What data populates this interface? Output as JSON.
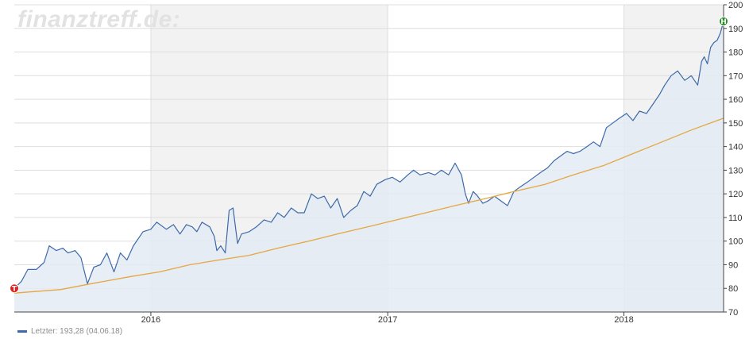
{
  "watermark": "finanztreff.de:",
  "legend": {
    "label": "Letzter: 193,28 (04.06.18)",
    "color": "#3e69a8"
  },
  "chart_data": {
    "type": "line",
    "ylim": [
      70,
      200
    ],
    "yticks": [
      70,
      80,
      90,
      100,
      110,
      120,
      130,
      140,
      150,
      160,
      170,
      180,
      190,
      200
    ],
    "xlim": [
      "2015-06-04",
      "2018-06-04"
    ],
    "xticks": [
      {
        "date": "2016-01-01",
        "label": "2016"
      },
      {
        "date": "2017-01-01",
        "label": "2017"
      },
      {
        "date": "2018-01-01",
        "label": "2018"
      }
    ],
    "shaded_years": [
      [
        "2016-01-01",
        "2017-01-01"
      ],
      [
        "2018-01-01",
        "2018-06-04"
      ]
    ],
    "grid": true,
    "series": [
      {
        "role": "price",
        "color": "#3e69a8",
        "fill": "#e3ebf5",
        "points": [
          [
            "2015-06-04",
            80
          ],
          [
            "2015-06-15",
            83
          ],
          [
            "2015-06-25",
            88
          ],
          [
            "2015-07-08",
            88
          ],
          [
            "2015-07-20",
            91
          ],
          [
            "2015-07-28",
            98
          ],
          [
            "2015-08-08",
            96
          ],
          [
            "2015-08-18",
            97
          ],
          [
            "2015-08-26",
            95
          ],
          [
            "2015-09-06",
            96
          ],
          [
            "2015-09-15",
            93
          ],
          [
            "2015-09-25",
            82
          ],
          [
            "2015-10-05",
            89
          ],
          [
            "2015-10-15",
            90
          ],
          [
            "2015-10-25",
            95
          ],
          [
            "2015-11-05",
            87
          ],
          [
            "2015-11-15",
            95
          ],
          [
            "2015-11-25",
            92
          ],
          [
            "2015-12-05",
            98
          ],
          [
            "2015-12-20",
            104
          ],
          [
            "2016-01-01",
            105
          ],
          [
            "2016-01-10",
            108
          ],
          [
            "2016-01-25",
            105
          ],
          [
            "2016-02-05",
            107
          ],
          [
            "2016-02-15",
            103
          ],
          [
            "2016-02-25",
            107
          ],
          [
            "2016-03-05",
            106
          ],
          [
            "2016-03-12",
            104
          ],
          [
            "2016-03-20",
            108
          ],
          [
            "2016-04-01",
            106
          ],
          [
            "2016-04-08",
            102
          ],
          [
            "2016-04-12",
            96
          ],
          [
            "2016-04-18",
            98
          ],
          [
            "2016-04-25",
            95
          ],
          [
            "2016-05-01",
            113
          ],
          [
            "2016-05-07",
            114
          ],
          [
            "2016-05-14",
            99
          ],
          [
            "2016-05-20",
            103
          ],
          [
            "2016-06-01",
            104
          ],
          [
            "2016-06-12",
            106
          ],
          [
            "2016-06-24",
            109
          ],
          [
            "2016-07-05",
            108
          ],
          [
            "2016-07-15",
            112
          ],
          [
            "2016-07-25",
            110
          ],
          [
            "2016-08-05",
            114
          ],
          [
            "2016-08-15",
            112
          ],
          [
            "2016-08-25",
            112
          ],
          [
            "2016-09-05",
            120
          ],
          [
            "2016-09-15",
            118
          ],
          [
            "2016-09-25",
            119
          ],
          [
            "2016-10-05",
            114
          ],
          [
            "2016-10-15",
            118
          ],
          [
            "2016-10-25",
            110
          ],
          [
            "2016-11-05",
            113
          ],
          [
            "2016-11-15",
            115
          ],
          [
            "2016-11-25",
            121
          ],
          [
            "2016-12-05",
            119
          ],
          [
            "2016-12-15",
            124
          ],
          [
            "2016-12-28",
            126
          ],
          [
            "2017-01-08",
            127
          ],
          [
            "2017-01-20",
            125
          ],
          [
            "2017-02-01",
            128
          ],
          [
            "2017-02-10",
            130
          ],
          [
            "2017-02-20",
            128
          ],
          [
            "2017-03-05",
            129
          ],
          [
            "2017-03-15",
            128
          ],
          [
            "2017-03-25",
            130
          ],
          [
            "2017-04-05",
            128
          ],
          [
            "2017-04-15",
            133
          ],
          [
            "2017-04-25",
            128
          ],
          [
            "2017-05-01",
            120
          ],
          [
            "2017-05-06",
            116
          ],
          [
            "2017-05-13",
            121
          ],
          [
            "2017-05-20",
            119
          ],
          [
            "2017-05-28",
            116
          ],
          [
            "2017-06-05",
            117
          ],
          [
            "2017-06-15",
            119
          ],
          [
            "2017-06-25",
            117
          ],
          [
            "2017-07-05",
            115
          ],
          [
            "2017-07-15",
            121
          ],
          [
            "2017-07-25",
            123
          ],
          [
            "2017-08-05",
            125
          ],
          [
            "2017-08-15",
            127
          ],
          [
            "2017-08-25",
            129
          ],
          [
            "2017-09-05",
            131
          ],
          [
            "2017-09-15",
            134
          ],
          [
            "2017-09-25",
            136
          ],
          [
            "2017-10-05",
            138
          ],
          [
            "2017-10-15",
            137
          ],
          [
            "2017-10-25",
            138
          ],
          [
            "2017-11-05",
            140
          ],
          [
            "2017-11-15",
            142
          ],
          [
            "2017-11-25",
            140
          ],
          [
            "2017-12-05",
            148
          ],
          [
            "2017-12-15",
            150
          ],
          [
            "2017-12-25",
            152
          ],
          [
            "2018-01-05",
            154
          ],
          [
            "2018-01-15",
            151
          ],
          [
            "2018-01-25",
            155
          ],
          [
            "2018-02-05",
            154
          ],
          [
            "2018-02-15",
            158
          ],
          [
            "2018-02-25",
            162
          ],
          [
            "2018-03-05",
            166
          ],
          [
            "2018-03-15",
            170
          ],
          [
            "2018-03-25",
            172
          ],
          [
            "2018-04-05",
            168
          ],
          [
            "2018-04-15",
            170
          ],
          [
            "2018-04-25",
            166
          ],
          [
            "2018-05-01",
            176
          ],
          [
            "2018-05-05",
            178
          ],
          [
            "2018-05-10",
            175
          ],
          [
            "2018-05-15",
            182
          ],
          [
            "2018-05-20",
            184
          ],
          [
            "2018-05-25",
            185
          ],
          [
            "2018-05-30",
            188
          ],
          [
            "2018-06-04",
            193
          ]
        ]
      },
      {
        "role": "moving-average",
        "color": "#e6a640",
        "points": [
          [
            "2015-06-04",
            78
          ],
          [
            "2015-08-15",
            79.5
          ],
          [
            "2015-10-01",
            82
          ],
          [
            "2015-12-01",
            85
          ],
          [
            "2016-01-15",
            87
          ],
          [
            "2016-03-01",
            90
          ],
          [
            "2016-04-15",
            92
          ],
          [
            "2016-06-01",
            94
          ],
          [
            "2016-07-15",
            97
          ],
          [
            "2016-09-01",
            100
          ],
          [
            "2016-10-15",
            103
          ],
          [
            "2016-12-01",
            106
          ],
          [
            "2017-01-15",
            109
          ],
          [
            "2017-03-01",
            112
          ],
          [
            "2017-04-15",
            115
          ],
          [
            "2017-06-01",
            118
          ],
          [
            "2017-07-15",
            121
          ],
          [
            "2017-09-01",
            124
          ],
          [
            "2017-10-15",
            128
          ],
          [
            "2017-12-01",
            132
          ],
          [
            "2018-01-15",
            137
          ],
          [
            "2018-03-01",
            142
          ],
          [
            "2018-04-15",
            147
          ],
          [
            "2018-06-04",
            152
          ]
        ]
      }
    ],
    "markers": [
      {
        "date": "2015-06-04",
        "value": 80,
        "letter": "T",
        "color": "#e02020"
      },
      {
        "date": "2018-06-04",
        "value": 193,
        "letter": "H",
        "color": "#2a8a2a"
      }
    ]
  }
}
